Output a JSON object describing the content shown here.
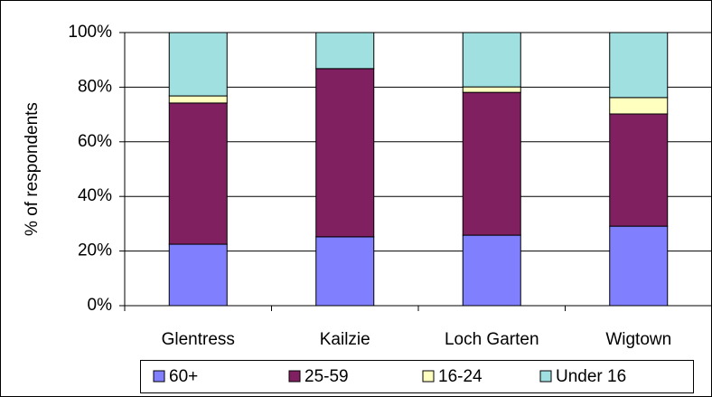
{
  "chart_data": {
    "type": "stacked_bar",
    "y_label": "% of respondents",
    "categories": [
      "Glentress",
      "Kailzie",
      "Loch Garten",
      "Wigtown"
    ],
    "series": [
      {
        "name": "60+",
        "color": "#8080ff",
        "values": [
          22.5,
          25.2,
          25.8,
          29.1
        ]
      },
      {
        "name": "25-59",
        "color": "#802060",
        "values": [
          51.7,
          61.6,
          52.3,
          41.1
        ]
      },
      {
        "name": "16-24",
        "color": "#ffffc0",
        "values": [
          2.6,
          0,
          2.0,
          6.0
        ]
      },
      {
        "name": "Under 16",
        "color": "#a0e0e0",
        "values": [
          23.2,
          13.2,
          19.9,
          23.8
        ]
      }
    ],
    "ylim": [
      0,
      100
    ],
    "yticks": [
      {
        "value": 0,
        "label": "0%"
      },
      {
        "value": 20,
        "label": "20%"
      },
      {
        "value": 40,
        "label": "40%"
      },
      {
        "value": 60,
        "label": "60%"
      },
      {
        "value": 80,
        "label": "80%"
      },
      {
        "value": 100,
        "label": "100%"
      }
    ],
    "grid": true,
    "legend": "bottom"
  }
}
